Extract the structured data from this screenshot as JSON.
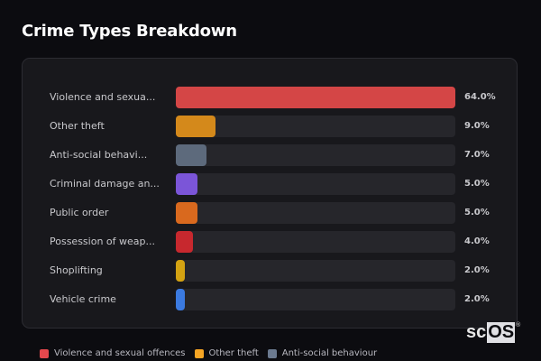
{
  "header": {
    "title": "Crime Types Breakdown"
  },
  "rows": [
    {
      "label": "Violence and sexua...",
      "value_label": "64.0%",
      "color": "#d44646"
    },
    {
      "label": "Other theft",
      "value_label": "9.0%",
      "color": "#d4891b"
    },
    {
      "label": "Anti-social behavi...",
      "value_label": "7.0%",
      "color": "#5d6a7c"
    },
    {
      "label": "Criminal damage an...",
      "value_label": "5.0%",
      "color": "#7b55d8"
    },
    {
      "label": "Public order",
      "value_label": "5.0%",
      "color": "#d9691e"
    },
    {
      "label": "Possession of weap...",
      "value_label": "4.0%",
      "color": "#c7282e"
    },
    {
      "label": "Shoplifting",
      "value_label": "2.0%",
      "color": "#d3a212"
    },
    {
      "label": "Vehicle crime",
      "value_label": "2.0%",
      "color": "#3b7ae0"
    }
  ],
  "legend": [
    {
      "label": "Violence and sexual offences",
      "color": "#e5484d"
    },
    {
      "label": "Other theft",
      "color": "#f5a524"
    },
    {
      "label": "Anti-social behaviour",
      "color": "#6b7a90"
    }
  ],
  "logo": {
    "prefix": "sc",
    "highlight": "OS",
    "mark": "®"
  },
  "chart_data": {
    "type": "bar",
    "orientation": "horizontal",
    "title": "Crime Types Breakdown",
    "categories": [
      "Violence and sexual offences",
      "Other theft",
      "Anti-social behaviour",
      "Criminal damage and arson",
      "Public order",
      "Possession of weapons",
      "Shoplifting",
      "Vehicle crime"
    ],
    "values": [
      64.0,
      9.0,
      7.0,
      5.0,
      5.0,
      4.0,
      2.0,
      2.0
    ],
    "unit": "%",
    "xlim": [
      0,
      64
    ],
    "grid": false,
    "legend_position": "bottom",
    "legend_entries": [
      "Violence and sexual offences",
      "Other theft",
      "Anti-social behaviour"
    ]
  }
}
